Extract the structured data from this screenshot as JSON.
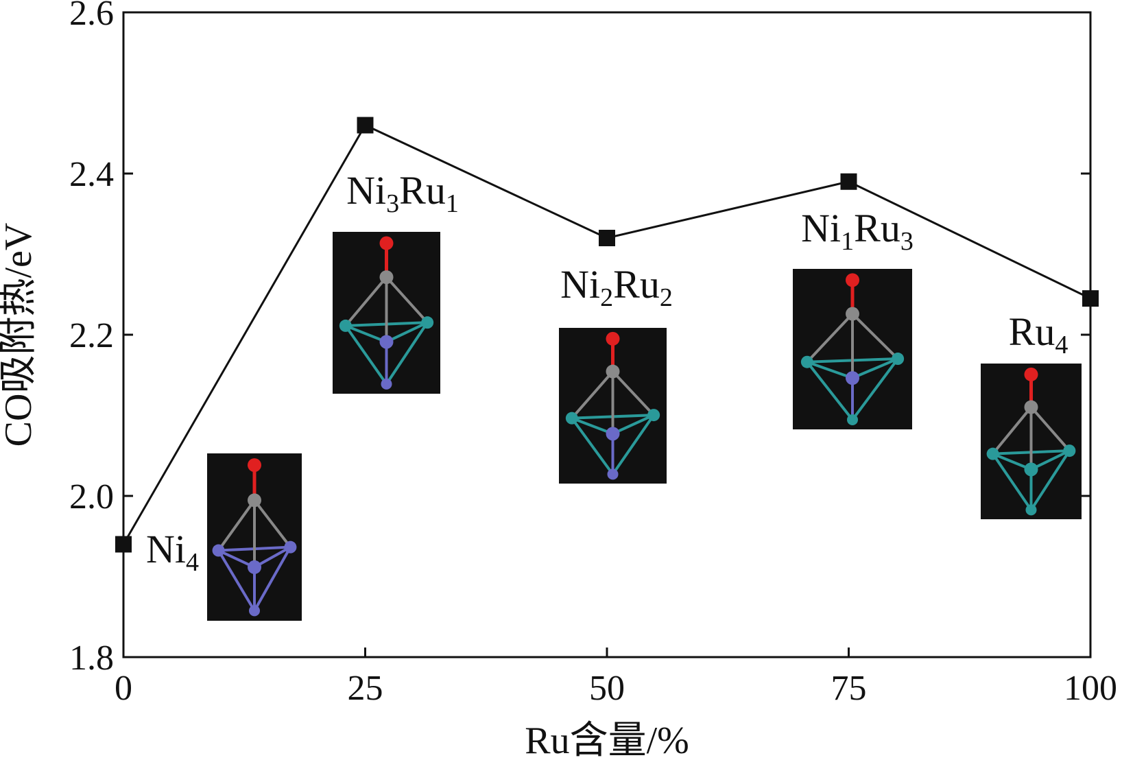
{
  "chart_data": {
    "type": "line",
    "xlabel": "Ru含量/%",
    "ylabel": "CO吸附热/eV",
    "xlim": [
      0,
      100
    ],
    "ylim": [
      1.8,
      2.6
    ],
    "x_ticks": [
      0,
      25,
      50,
      75,
      100
    ],
    "x_tick_labels": [
      "0",
      "25",
      "50",
      "75",
      "100"
    ],
    "y_ticks": [
      1.8,
      2.0,
      2.2,
      2.4,
      2.6
    ],
    "y_tick_labels": [
      "1.8",
      "2.0",
      "2.2",
      "2.4",
      "2.6"
    ],
    "grid": false,
    "series": [
      {
        "x": [
          0,
          25,
          50,
          75,
          100
        ],
        "y": [
          1.94,
          2.46,
          2.32,
          2.39,
          2.245
        ],
        "marker": "square",
        "color": "#111111"
      }
    ],
    "annotations": [
      {
        "base": "Ni",
        "sub1": "4",
        "mid": "",
        "sub2": "",
        "x": 0
      },
      {
        "base": "Ni",
        "sub1": "3",
        "mid": "Ru",
        "sub2": "1",
        "x": 25
      },
      {
        "base": "Ni",
        "sub1": "2",
        "mid": "Ru",
        "sub2": "2",
        "x": 50
      },
      {
        "base": "Ni",
        "sub1": "1",
        "mid": "Ru",
        "sub2": "3",
        "x": 75
      },
      {
        "base": "Ru",
        "sub1": "4",
        "mid": "",
        "sub2": "",
        "x": 100
      }
    ],
    "structure_images": [
      {
        "cluster": "Ni4",
        "metal_color": "#6a6ac8",
        "vertex_colors": [
          "#6a6ac8",
          "#6a6ac8",
          "#6a6ac8",
          "#6a6ac8"
        ]
      },
      {
        "cluster": "Ni3Ru1",
        "metal_color": "#6a6ac8",
        "vertex_colors": [
          "#2a9a9a",
          "#2a9a9a",
          "#6a6ac8",
          "#6a6ac8"
        ]
      },
      {
        "cluster": "Ni2Ru2",
        "metal_color": "#6a6ac8",
        "vertex_colors": [
          "#2a9a9a",
          "#2a9a9a",
          "#6a6ac8",
          "#6a6ac8"
        ]
      },
      {
        "cluster": "Ni1Ru3",
        "metal_color": "#2a9a9a",
        "vertex_colors": [
          "#2a9a9a",
          "#2a9a9a",
          "#6a6ac8",
          "#2a9a9a"
        ]
      },
      {
        "cluster": "Ru4",
        "metal_color": "#2a9a9a",
        "vertex_colors": [
          "#2a9a9a",
          "#2a9a9a",
          "#2a9a9a",
          "#2a9a9a"
        ]
      }
    ],
    "atom_colors": {
      "oxygen": "#e02020",
      "carbon": "#8a8a8a",
      "background": "#111111"
    }
  }
}
